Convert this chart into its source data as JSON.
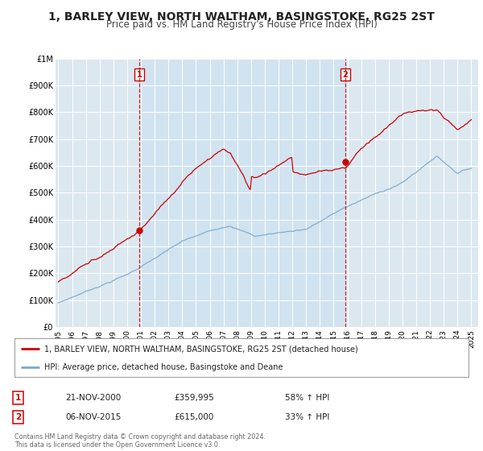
{
  "title": "1, BARLEY VIEW, NORTH WALTHAM, BASINGSTOKE, RG25 2ST",
  "subtitle": "Price paid vs. HM Land Registry's House Price Index (HPI)",
  "title_fontsize": 10,
  "subtitle_fontsize": 8.5,
  "ylabel_ticks": [
    "£0",
    "£100K",
    "£200K",
    "£300K",
    "£400K",
    "£500K",
    "£600K",
    "£700K",
    "£800K",
    "£900K",
    "£1M"
  ],
  "ytick_values": [
    0,
    100000,
    200000,
    300000,
    400000,
    500000,
    600000,
    700000,
    800000,
    900000,
    1000000
  ],
  "ylim": [
    0,
    1000000
  ],
  "xlim_start": 1994.8,
  "xlim_end": 2025.5,
  "background_color": "#ffffff",
  "plot_bg_color": "#dce8f0",
  "grid_color": "#ffffff",
  "red_line_color": "#cc0000",
  "blue_line_color": "#7aa8cc",
  "marker1_x": 2000.88,
  "marker1_y": 359995,
  "marker2_x": 2015.85,
  "marker2_y": 615000,
  "legend_red_label": "1, BARLEY VIEW, NORTH WALTHAM, BASINGSTOKE, RG25 2ST (detached house)",
  "legend_blue_label": "HPI: Average price, detached house, Basingstoke and Deane",
  "table_row1": [
    "1",
    "21-NOV-2000",
    "£359,995",
    "58% ↑ HPI"
  ],
  "table_row2": [
    "2",
    "06-NOV-2015",
    "£615,000",
    "33% ↑ HPI"
  ],
  "footer": "Contains HM Land Registry data © Crown copyright and database right 2024.\nThis data is licensed under the Open Government Licence v3.0.",
  "xtick_years": [
    1995,
    1996,
    1997,
    1998,
    1999,
    2000,
    2001,
    2002,
    2003,
    2004,
    2005,
    2006,
    2007,
    2008,
    2009,
    2010,
    2011,
    2012,
    2013,
    2014,
    2015,
    2016,
    2017,
    2018,
    2019,
    2020,
    2021,
    2022,
    2023,
    2024,
    2025
  ]
}
